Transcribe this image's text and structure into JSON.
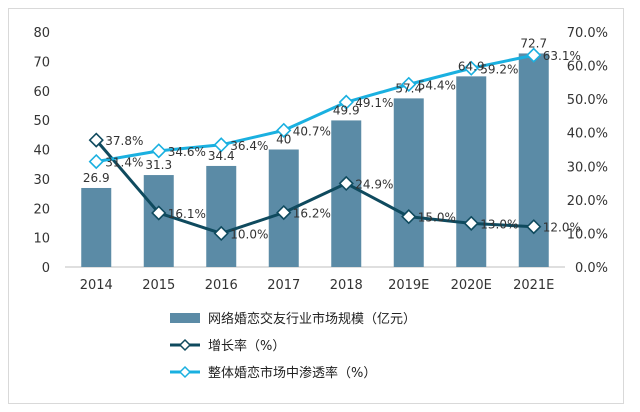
{
  "chart_data": {
    "type": "bar+line",
    "categories": [
      "2014",
      "2015",
      "2016",
      "2017",
      "2018",
      "2019E",
      "2020E",
      "2021E"
    ],
    "left_axis": {
      "min": 0,
      "max": 80,
      "step": 10,
      "ticks": [
        "0",
        "10",
        "20",
        "30",
        "40",
        "50",
        "60",
        "70",
        "80"
      ]
    },
    "right_axis": {
      "min": 0,
      "max": 70,
      "step": 10,
      "ticks": [
        "0.0%",
        "10.0%",
        "20.0%",
        "30.0%",
        "40.0%",
        "50.0%",
        "60.0%",
        "70.0%"
      ]
    },
    "series": [
      {
        "name": "网络婚恋交友行业市场规模（亿元）",
        "kind": "bar",
        "axis": "left",
        "color": "#5b8ba6",
        "values": [
          26.9,
          31.3,
          34.4,
          40,
          49.9,
          57.4,
          64.9,
          72.7
        ],
        "labels": [
          "26.9",
          "31.3",
          "34.4",
          "40",
          "49.9",
          "57.4",
          "64.9",
          "72.7"
        ]
      },
      {
        "name": "增长率（%）",
        "kind": "line",
        "axis": "right",
        "color": "#0f4a5e",
        "values": [
          37.8,
          16.1,
          10.0,
          16.2,
          24.9,
          15.0,
          13.0,
          12.0
        ],
        "labels": [
          "37.8%",
          "16.1%",
          "10.0%",
          "16.2%",
          "24.9%",
          "15.0%",
          "13.0%",
          "12.0%"
        ]
      },
      {
        "name": "整体婚恋市场中渗透率（%）",
        "kind": "line",
        "axis": "right",
        "color": "#1ab0e0",
        "values": [
          31.4,
          34.6,
          36.4,
          40.7,
          49.1,
          54.4,
          59.2,
          63.1
        ],
        "labels": [
          "31.4%",
          "34.6%",
          "36.4%",
          "40.7%",
          "49.1%",
          "54.4%",
          "59.2%",
          "63.1%"
        ]
      }
    ],
    "grid": false,
    "legend_position": "bottom"
  }
}
